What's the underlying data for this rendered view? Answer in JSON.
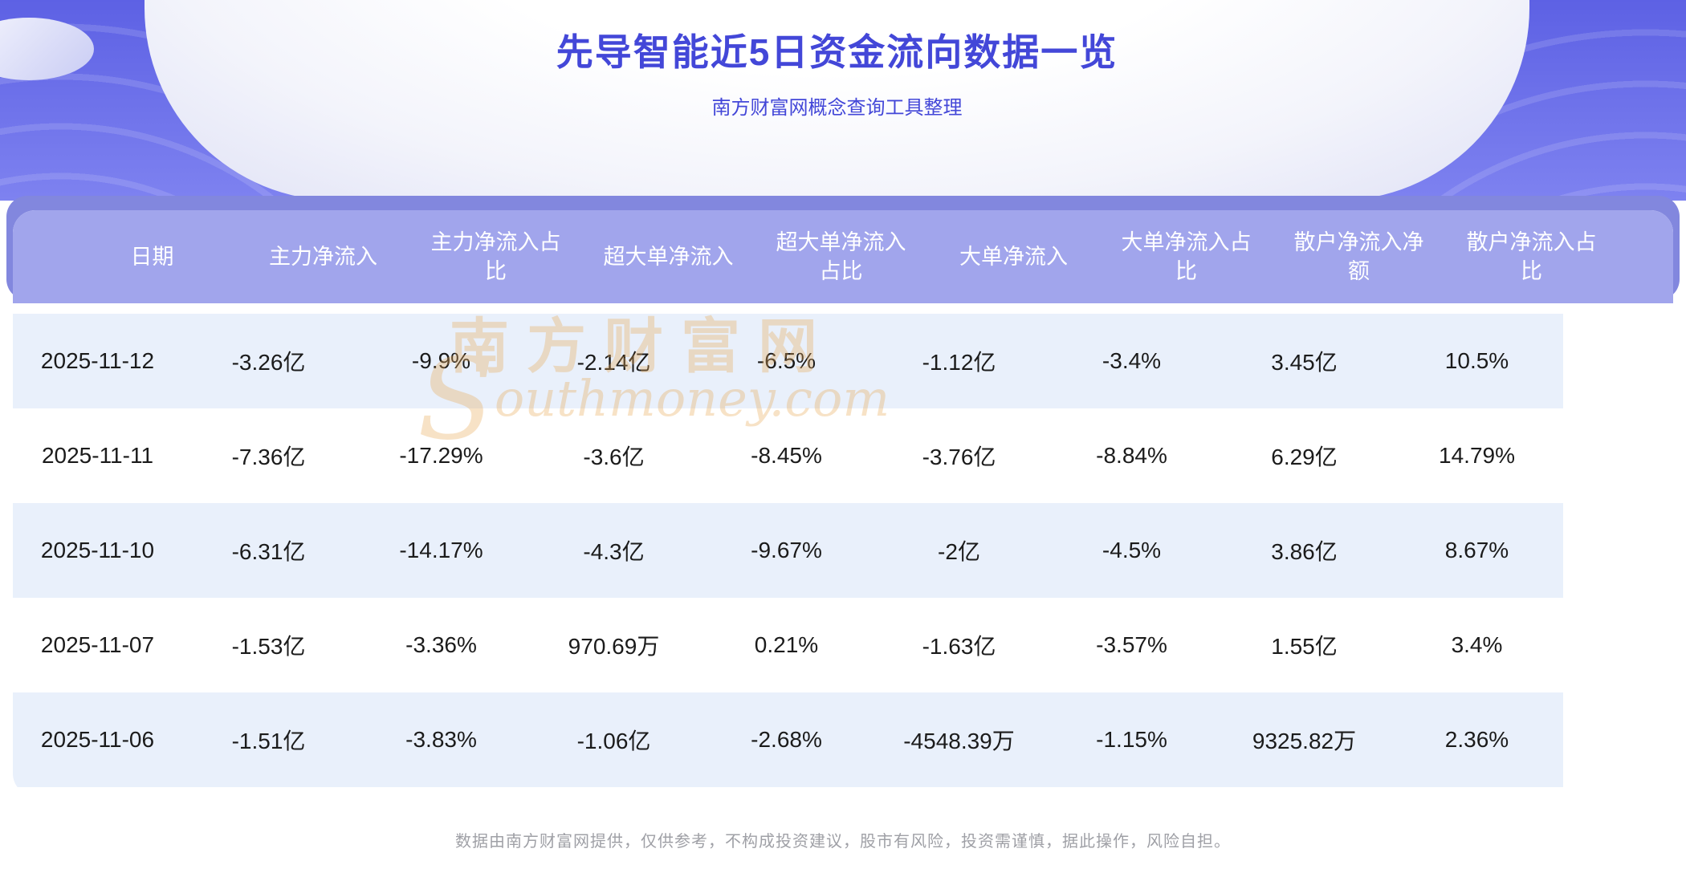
{
  "page": {
    "title": "先导智能近5日资金流向数据一览",
    "subtitle": "南方财富网概念查询工具整理",
    "footer": "数据由南方财富网提供，仅供参考，不构成投资建议，股市有风险，投资需谨慎，据此操作，风险自担。",
    "watermark": {
      "cn": "南方财富网",
      "en_initial": "S",
      "en_rest": "outhmoney.com"
    }
  },
  "colors": {
    "hero_purple_1": "#5d61e4",
    "hero_purple_2": "#7e82f0",
    "band_purple": "#8287de",
    "header_purple": "#a1a5ec",
    "row_stripe": "#e9f0fb",
    "card_white": "#ffffff",
    "title_blue": "#4347d8",
    "body_text": "#1b1b1b",
    "footer_gray": "#9fa0a6",
    "watermark_orange": "#e8a855"
  },
  "chart_data": {
    "type": "table",
    "title": "先导智能近5日资金流向数据一览",
    "columns": [
      "日期",
      "主力净流入",
      "主力净流入占比",
      "超大单净流入",
      "超大单净流入占比",
      "大单净流入",
      "大单净流入占比",
      "散户净流入净额",
      "散户净流入占比"
    ],
    "rows": [
      [
        "2025-11-12",
        "-3.26亿",
        "-9.9%",
        "-2.14亿",
        "-6.5%",
        "-1.12亿",
        "-3.4%",
        "3.45亿",
        "10.5%"
      ],
      [
        "2025-11-11",
        "-7.36亿",
        "-17.29%",
        "-3.6亿",
        "-8.45%",
        "-3.76亿",
        "-8.84%",
        "6.29亿",
        "14.79%"
      ],
      [
        "2025-11-10",
        "-6.31亿",
        "-14.17%",
        "-4.3亿",
        "-9.67%",
        "-2亿",
        "-4.5%",
        "3.86亿",
        "8.67%"
      ],
      [
        "2025-11-07",
        "-1.53亿",
        "-3.36%",
        "970.69万",
        "0.21%",
        "-1.63亿",
        "-3.57%",
        "1.55亿",
        "3.4%"
      ],
      [
        "2025-11-06",
        "-1.51亿",
        "-3.83%",
        "-1.06亿",
        "-2.68%",
        "-4548.39万",
        "-1.15%",
        "9325.82万",
        "2.36%"
      ]
    ]
  }
}
